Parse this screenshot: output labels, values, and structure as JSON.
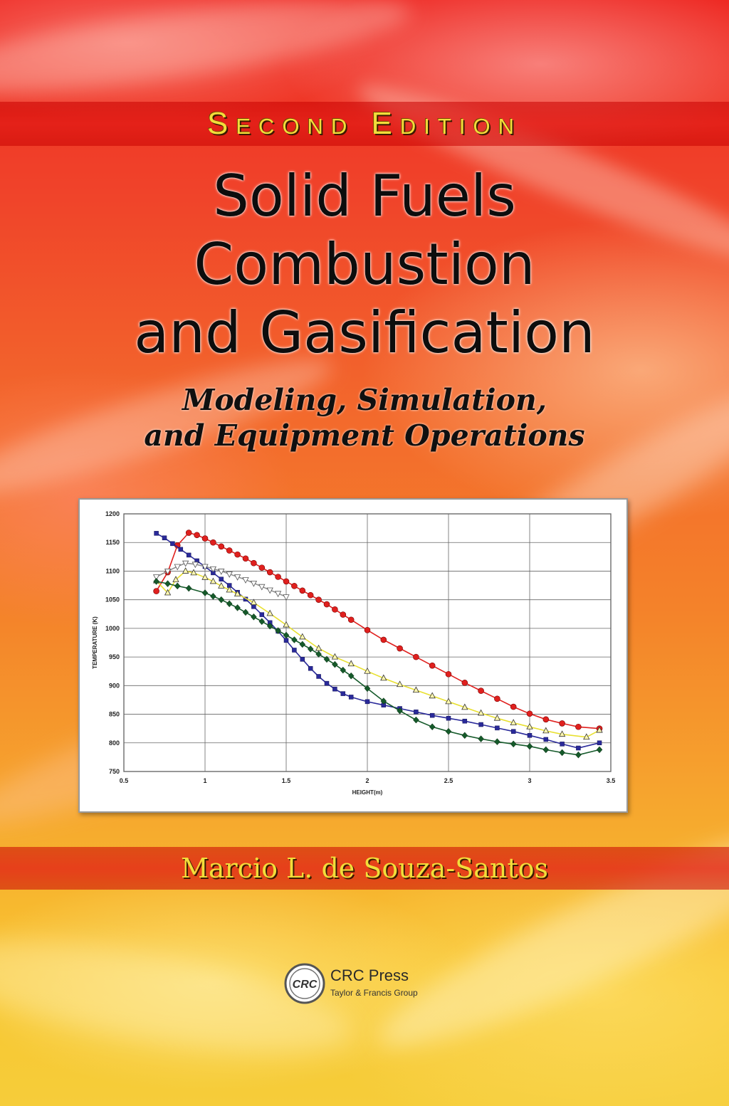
{
  "cover": {
    "edition": "Second Edition",
    "title_lines": [
      "Solid Fuels",
      "Combustion",
      "and Gasification"
    ],
    "subtitle_lines": [
      "Modeling, Simulation,",
      "and Equipment Operations"
    ],
    "author": "Marcio L. de Souza-Santos",
    "publisher": {
      "logo_text": "CRC",
      "name": "CRC Press",
      "group": "Taylor & Francis Group"
    }
  },
  "chart_data": {
    "type": "line",
    "title": "",
    "xlabel": "HEIGHT(m)",
    "ylabel": "TEMPERATURE (K)",
    "xlim": [
      0.5,
      3.5
    ],
    "ylim": [
      750,
      1200
    ],
    "xticks": [
      "0.5",
      "1",
      "1.5",
      "2",
      "2.5",
      "3",
      "3.5"
    ],
    "yticks": [
      "750",
      "800",
      "850",
      "900",
      "950",
      "1000",
      "1050",
      "1100",
      "1150",
      "1200"
    ],
    "grid": true,
    "legend": "none",
    "series": [
      {
        "color": "#e0201e",
        "marker": "circle",
        "x": [
          0.7,
          0.77,
          0.83,
          0.9,
          0.95,
          1.0,
          1.05,
          1.1,
          1.15,
          1.2,
          1.25,
          1.3,
          1.35,
          1.4,
          1.45,
          1.5,
          1.55,
          1.6,
          1.65,
          1.7,
          1.75,
          1.8,
          1.85,
          1.9,
          2.0,
          2.1,
          2.2,
          2.3,
          2.4,
          2.5,
          2.6,
          2.7,
          2.8,
          2.9,
          3.0,
          3.1,
          3.2,
          3.3,
          3.43
        ],
        "y": [
          1065,
          1098,
          1145,
          1167,
          1163,
          1157,
          1150,
          1143,
          1136,
          1129,
          1122,
          1114,
          1106,
          1098,
          1090,
          1082,
          1074,
          1066,
          1058,
          1050,
          1042,
          1033,
          1024,
          1015,
          997,
          980,
          965,
          950,
          935,
          920,
          905,
          891,
          877,
          863,
          851,
          841,
          834,
          828,
          825
        ]
      },
      {
        "color": "#2a2a9a",
        "marker": "square",
        "x": [
          0.7,
          0.75,
          0.8,
          0.85,
          0.9,
          0.95,
          1.0,
          1.05,
          1.1,
          1.15,
          1.2,
          1.25,
          1.3,
          1.35,
          1.4,
          1.45,
          1.5,
          1.55,
          1.6,
          1.65,
          1.7,
          1.75,
          1.8,
          1.85,
          1.9,
          2.0,
          2.1,
          2.2,
          2.3,
          2.4,
          2.5,
          2.6,
          2.7,
          2.8,
          2.9,
          3.0,
          3.1,
          3.2,
          3.3,
          3.43
        ],
        "y": [
          1166,
          1158,
          1148,
          1138,
          1128,
          1118,
          1108,
          1097,
          1086,
          1075,
          1063,
          1051,
          1038,
          1024,
          1010,
          995,
          979,
          962,
          946,
          930,
          916,
          904,
          894,
          886,
          880,
          872,
          866,
          860,
          854,
          848,
          843,
          838,
          832,
          826,
          820,
          813,
          806,
          798,
          791,
          800
        ]
      },
      {
        "color": "#e8e030",
        "marker": "triangle",
        "x": [
          0.7,
          0.77,
          0.82,
          0.88,
          0.93,
          1.0,
          1.05,
          1.1,
          1.15,
          1.2,
          1.3,
          1.4,
          1.5,
          1.6,
          1.7,
          1.8,
          1.9,
          2.0,
          2.1,
          2.2,
          2.3,
          2.4,
          2.5,
          2.6,
          2.7,
          2.8,
          2.9,
          3.0,
          3.1,
          3.2,
          3.35,
          3.43
        ],
        "y": [
          1083,
          1062,
          1085,
          1100,
          1097,
          1089,
          1082,
          1074,
          1067,
          1060,
          1045,
          1026,
          1006,
          985,
          965,
          950,
          938,
          925,
          913,
          902,
          892,
          882,
          872,
          862,
          852,
          843,
          835,
          828,
          821,
          815,
          810,
          822
        ]
      },
      {
        "color": "#909090",
        "marker": "triangle-down",
        "x": [
          0.7,
          0.77,
          0.83,
          0.88,
          0.94,
          1.0,
          1.05,
          1.1,
          1.15,
          1.2,
          1.25,
          1.3,
          1.35,
          1.4,
          1.45,
          1.5
        ],
        "y": [
          1090,
          1100,
          1108,
          1114,
          1112,
          1108,
          1104,
          1100,
          1095,
          1090,
          1085,
          1079,
          1073,
          1067,
          1061,
          1055
        ]
      },
      {
        "color": "#155a2a",
        "marker": "diamond",
        "x": [
          0.7,
          0.77,
          0.83,
          0.9,
          1.0,
          1.05,
          1.1,
          1.15,
          1.2,
          1.25,
          1.3,
          1.35,
          1.4,
          1.45,
          1.5,
          1.55,
          1.6,
          1.65,
          1.7,
          1.75,
          1.8,
          1.85,
          1.9,
          2.0,
          2.1,
          2.2,
          2.3,
          2.4,
          2.5,
          2.6,
          2.7,
          2.8,
          2.9,
          3.0,
          3.1,
          3.2,
          3.3,
          3.43
        ],
        "y": [
          1082,
          1078,
          1074,
          1070,
          1062,
          1056,
          1050,
          1043,
          1036,
          1028,
          1020,
          1012,
          1004,
          996,
          988,
          980,
          972,
          964,
          955,
          946,
          937,
          927,
          917,
          895,
          873,
          856,
          840,
          828,
          820,
          813,
          807,
          802,
          798,
          794,
          788,
          783,
          779,
          788
        ]
      }
    ]
  }
}
